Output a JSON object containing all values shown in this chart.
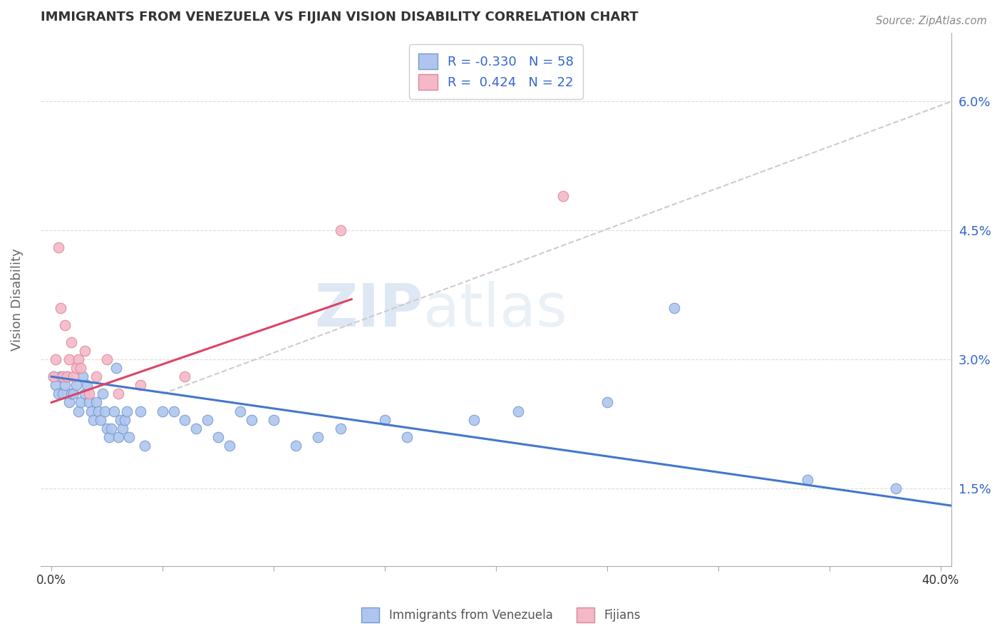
{
  "title": "IMMIGRANTS FROM VENEZUELA VS FIJIAN VISION DISABILITY CORRELATION CHART",
  "source": "Source: ZipAtlas.com",
  "ylabel": "Vision Disability",
  "y_ticks": [
    0.015,
    0.03,
    0.045,
    0.06
  ],
  "y_tick_labels": [
    "1.5%",
    "3.0%",
    "4.5%",
    "6.0%"
  ],
  "x_ticks": [
    0.0,
    0.05,
    0.1,
    0.15,
    0.2,
    0.25,
    0.3,
    0.35,
    0.4
  ],
  "x_lim": [
    -0.005,
    0.405
  ],
  "y_lim": [
    0.006,
    0.068
  ],
  "legend_entries": [
    {
      "label": "R = -0.330   N = 58",
      "color": "#aec6ef"
    },
    {
      "label": "R =  0.424   N = 22",
      "color": "#f4a7b9"
    }
  ],
  "blue_scatter": [
    [
      0.001,
      0.028
    ],
    [
      0.002,
      0.027
    ],
    [
      0.003,
      0.026
    ],
    [
      0.004,
      0.028
    ],
    [
      0.005,
      0.026
    ],
    [
      0.006,
      0.027
    ],
    [
      0.007,
      0.028
    ],
    [
      0.008,
      0.025
    ],
    [
      0.009,
      0.026
    ],
    [
      0.01,
      0.026
    ],
    [
      0.011,
      0.027
    ],
    [
      0.012,
      0.024
    ],
    [
      0.013,
      0.025
    ],
    [
      0.014,
      0.028
    ],
    [
      0.015,
      0.026
    ],
    [
      0.016,
      0.027
    ],
    [
      0.017,
      0.025
    ],
    [
      0.018,
      0.024
    ],
    [
      0.019,
      0.023
    ],
    [
      0.02,
      0.025
    ],
    [
      0.021,
      0.024
    ],
    [
      0.022,
      0.023
    ],
    [
      0.023,
      0.026
    ],
    [
      0.024,
      0.024
    ],
    [
      0.025,
      0.022
    ],
    [
      0.026,
      0.021
    ],
    [
      0.027,
      0.022
    ],
    [
      0.028,
      0.024
    ],
    [
      0.029,
      0.029
    ],
    [
      0.03,
      0.021
    ],
    [
      0.031,
      0.023
    ],
    [
      0.032,
      0.022
    ],
    [
      0.033,
      0.023
    ],
    [
      0.034,
      0.024
    ],
    [
      0.035,
      0.021
    ],
    [
      0.04,
      0.024
    ],
    [
      0.042,
      0.02
    ],
    [
      0.05,
      0.024
    ],
    [
      0.055,
      0.024
    ],
    [
      0.06,
      0.023
    ],
    [
      0.065,
      0.022
    ],
    [
      0.07,
      0.023
    ],
    [
      0.075,
      0.021
    ],
    [
      0.08,
      0.02
    ],
    [
      0.085,
      0.024
    ],
    [
      0.09,
      0.023
    ],
    [
      0.1,
      0.023
    ],
    [
      0.11,
      0.02
    ],
    [
      0.12,
      0.021
    ],
    [
      0.13,
      0.022
    ],
    [
      0.15,
      0.023
    ],
    [
      0.16,
      0.021
    ],
    [
      0.19,
      0.023
    ],
    [
      0.21,
      0.024
    ],
    [
      0.25,
      0.025
    ],
    [
      0.28,
      0.036
    ],
    [
      0.34,
      0.016
    ],
    [
      0.38,
      0.015
    ]
  ],
  "pink_scatter": [
    [
      0.001,
      0.028
    ],
    [
      0.002,
      0.03
    ],
    [
      0.003,
      0.043
    ],
    [
      0.004,
      0.036
    ],
    [
      0.005,
      0.028
    ],
    [
      0.006,
      0.034
    ],
    [
      0.007,
      0.028
    ],
    [
      0.008,
      0.03
    ],
    [
      0.009,
      0.032
    ],
    [
      0.01,
      0.028
    ],
    [
      0.011,
      0.029
    ],
    [
      0.012,
      0.03
    ],
    [
      0.013,
      0.029
    ],
    [
      0.015,
      0.031
    ],
    [
      0.017,
      0.026
    ],
    [
      0.02,
      0.028
    ],
    [
      0.025,
      0.03
    ],
    [
      0.03,
      0.026
    ],
    [
      0.04,
      0.027
    ],
    [
      0.06,
      0.028
    ],
    [
      0.13,
      0.045
    ],
    [
      0.23,
      0.049
    ]
  ],
  "blue_line_x": [
    0.0,
    0.405
  ],
  "blue_line_y": [
    0.028,
    0.013
  ],
  "pink_line_x": [
    0.0,
    0.135
  ],
  "pink_line_y": [
    0.025,
    0.037
  ],
  "gray_line_x": [
    0.05,
    0.405
  ],
  "gray_line_y": [
    0.026,
    0.06
  ],
  "blue_color": "#aec6ef",
  "blue_edge": "#7799cc",
  "pink_color": "#f4b8c8",
  "pink_edge": "#dd8899",
  "blue_line_color": "#4477cc",
  "pink_line_color": "#dd4466",
  "gray_line_color": "#cccccc",
  "watermark_zip": "ZIP",
  "watermark_atlas": "atlas",
  "bg_color": "#ffffff",
  "grid_color": "#dddddd"
}
